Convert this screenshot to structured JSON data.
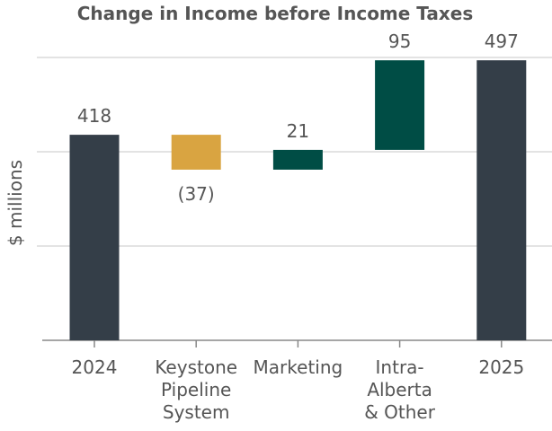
{
  "chart_data": {
    "type": "waterfall",
    "title": "Change in Income before Income Taxes",
    "ylabel": "$ millions",
    "xlabel": "",
    "ylim": [
      200,
      510
    ],
    "yticks": [
      200,
      300,
      400,
      500
    ],
    "grid": true,
    "categories": [
      [
        "2024"
      ],
      [
        "Keystone",
        "Pipeline",
        "System"
      ],
      [
        "Marketing"
      ],
      [
        "Intra-",
        "Alberta",
        "& Other"
      ],
      [
        "2025"
      ]
    ],
    "bars": [
      {
        "kind": "total",
        "value": 418,
        "label": "418",
        "color": "#343e48"
      },
      {
        "kind": "delta",
        "value": -37,
        "label": "(37)",
        "color": "#d9a441"
      },
      {
        "kind": "delta",
        "value": 21,
        "label": "21",
        "color": "#004d45"
      },
      {
        "kind": "delta",
        "value": 95,
        "label": "95",
        "color": "#004d45"
      },
      {
        "kind": "total",
        "value": 497,
        "label": "497",
        "color": "#343e48"
      }
    ]
  }
}
